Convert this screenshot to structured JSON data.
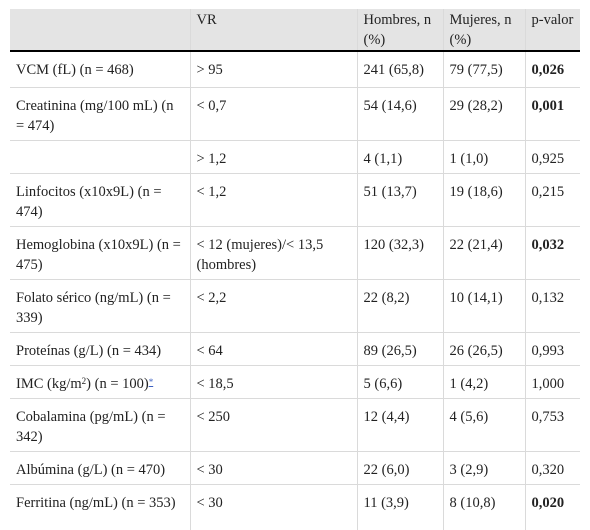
{
  "header": {
    "col1": "",
    "col2": "VR",
    "col3": "Hombres, n (%)",
    "col4": "Mujeres, n (%)",
    "col5": "p-valor"
  },
  "rows": [
    {
      "variable": "VCM (fL) (n = 468)",
      "vr": "> 95",
      "hombres": "241 (65,8)",
      "mujeres": "79 (77,5)",
      "p": "0,026",
      "bold": true
    },
    {
      "variable": "Creatinina (mg/100 mL) (n = 474)",
      "vr": "< 0,7",
      "hombres": "54 (14,6)",
      "mujeres": "29 (28,2)",
      "p": "0,001",
      "bold": true
    },
    {
      "variable": "",
      "vr": "> 1,2",
      "hombres": "4 (1,1)",
      "mujeres": "1 (1,0)",
      "p": "0,925",
      "bold": false
    },
    {
      "variable": "Linfocitos (x10x9L) (n = 474)",
      "vr": "< 1,2",
      "hombres": "51 (13,7)",
      "mujeres": "19 (18,6)",
      "p": "0,215",
      "bold": false
    },
    {
      "variable": "Hemoglobina (x10x9L) (n = 475)",
      "vr": "< 12 (mujeres)/< 13,5 (hombres)",
      "hombres": "120 (32,3)",
      "mujeres": "22 (21,4)",
      "p": "0,032",
      "bold": true
    },
    {
      "variable": "Folato sérico (ng/mL) (n = 339)",
      "vr": "< 2,2",
      "hombres": "22 (8,2)",
      "mujeres": "10 (14,1)",
      "p": "0,132",
      "bold": false
    },
    {
      "variable": "Proteínas (g/L) (n = 434)",
      "vr": "< 64",
      "hombres": "89 (26,5)",
      "mujeres": "26 (26,5)",
      "p": "0,993",
      "bold": false
    },
    {
      "variable_pre": "IMC (kg/m",
      "variable_sup": "2",
      "variable_post": ") (n = 100)",
      "variable_note": "*",
      "variable_tail": "",
      "vr": "< 18,5",
      "hombres": "5 (6,6)",
      "mujeres": "1 (4,2)",
      "p": "1,000",
      "bold": false
    },
    {
      "variable": "Cobalamina (pg/mL) (n = 342)",
      "vr": "< 250",
      "hombres": "12 (4,4)",
      "mujeres": "4 (5,6)",
      "p": "0,753",
      "bold": false
    },
    {
      "variable": "Albúmina (g/L) (n = 470)",
      "vr": "< 30",
      "hombres": "22 (6,0)",
      "mujeres": "3 (2,9)",
      "p": "0,320",
      "bold": false
    },
    {
      "variable": "Ferritina (ng/mL) (n = 353)",
      "vr": "< 30",
      "hombres": "11 (3,9)",
      "mujeres": "8 (10,8)",
      "p": "0,020",
      "bold": true
    }
  ]
}
